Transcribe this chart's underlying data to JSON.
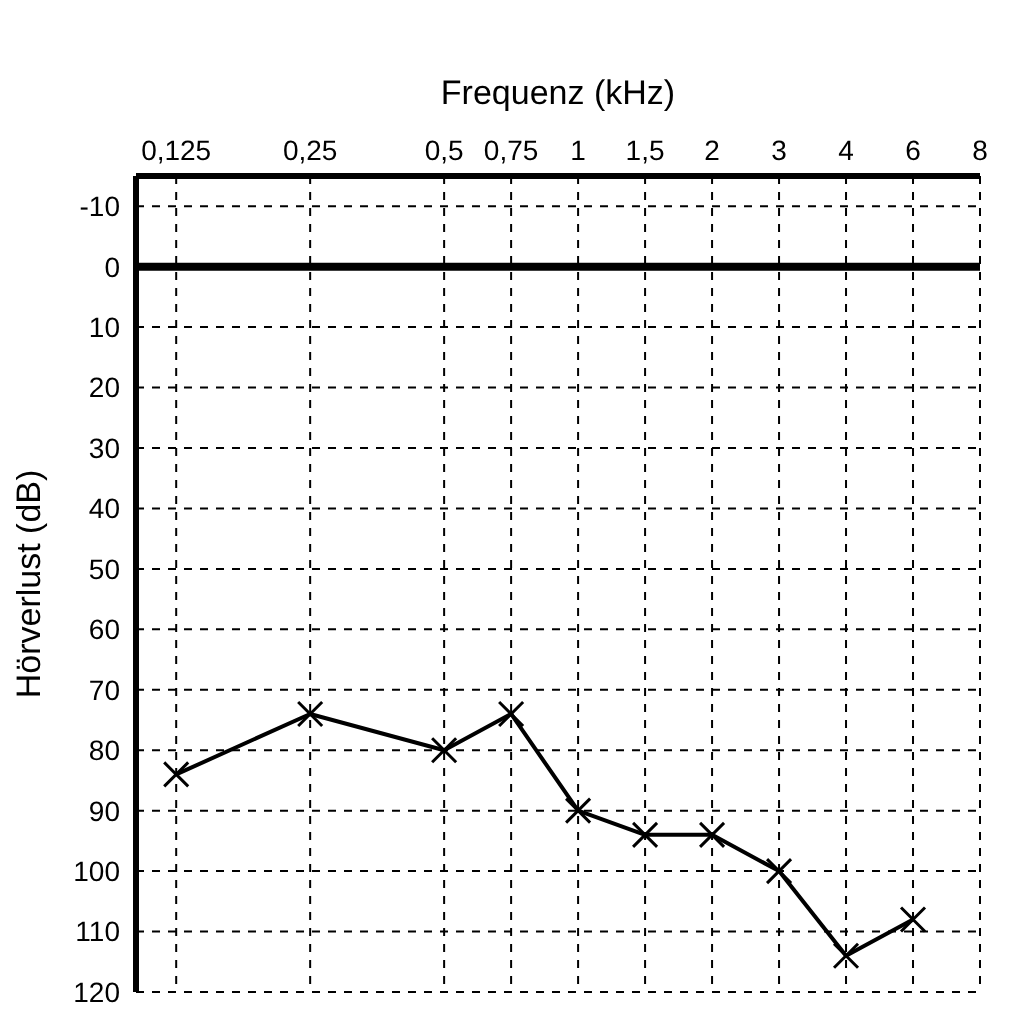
{
  "chart_data": {
    "type": "line",
    "xlabel": "Frequenz (kHz)",
    "ylabel": "Hörverlust (dB)",
    "categories": [
      "0,125",
      null,
      "0,25",
      null,
      "0,5",
      "0,75",
      "1",
      "1,5",
      "2",
      "3",
      "4",
      "6",
      "8"
    ],
    "series": [
      {
        "color": "#000000",
        "values": [
          84,
          null,
          74,
          null,
          80,
          74,
          90,
          94,
          94,
          100,
          114,
          108,
          null
        ]
      }
    ],
    "ylim": [
      120,
      -15
    ],
    "yticks": [
      -10,
      0,
      10,
      20,
      30,
      40,
      50,
      60,
      70,
      80,
      90,
      100,
      110,
      120
    ],
    "ref_lines": [
      {
        "axis": "y",
        "value": 0,
        "color": "#000000"
      }
    ],
    "grid": true,
    "marker": "cross"
  }
}
